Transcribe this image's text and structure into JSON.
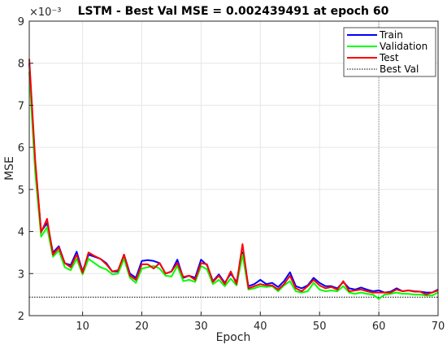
{
  "chart_data": {
    "type": "line",
    "title": "LSTM - Best Val MSE = 0.002439491 at epoch 60",
    "xlabel": "Epoch",
    "ylabel": "MSE",
    "y_multiplier_label": "×10⁻³",
    "xlim": [
      1,
      70
    ],
    "ylim": [
      2,
      9
    ],
    "xticks": [
      10,
      20,
      30,
      40,
      50,
      60,
      70
    ],
    "yticks": [
      2,
      3,
      4,
      5,
      6,
      7,
      8,
      9
    ],
    "grid": true,
    "legend_position": "top-right",
    "x": [
      1,
      2,
      3,
      4,
      5,
      6,
      7,
      8,
      9,
      10,
      11,
      12,
      13,
      14,
      15,
      16,
      17,
      18,
      19,
      20,
      21,
      22,
      23,
      24,
      25,
      26,
      27,
      28,
      29,
      30,
      31,
      32,
      33,
      34,
      35,
      36,
      37,
      38,
      39,
      40,
      41,
      42,
      43,
      44,
      45,
      46,
      47,
      48,
      49,
      50,
      51,
      52,
      53,
      54,
      55,
      56,
      57,
      58,
      59,
      60,
      61,
      62,
      63,
      64,
      65,
      66,
      67,
      68,
      69,
      70
    ],
    "series": [
      {
        "name": "Train",
        "color": "#0000ff",
        "values": [
          8.0,
          5.6,
          4.0,
          4.2,
          3.5,
          3.65,
          3.25,
          3.2,
          3.52,
          3.05,
          3.45,
          3.4,
          3.35,
          3.25,
          3.05,
          3.05,
          3.45,
          3.0,
          2.9,
          3.3,
          3.32,
          3.3,
          3.25,
          3.0,
          3.05,
          3.33,
          2.9,
          2.95,
          2.9,
          3.33,
          3.2,
          2.82,
          2.98,
          2.78,
          3.0,
          2.8,
          3.5,
          2.7,
          2.75,
          2.85,
          2.75,
          2.78,
          2.68,
          2.82,
          3.03,
          2.7,
          2.65,
          2.72,
          2.9,
          2.78,
          2.7,
          2.7,
          2.65,
          2.8,
          2.65,
          2.62,
          2.67,
          2.62,
          2.58,
          2.6,
          2.55,
          2.57,
          2.65,
          2.58,
          2.6,
          2.58,
          2.57,
          2.55,
          2.55,
          2.62
        ]
      },
      {
        "name": "Validation",
        "color": "#00ff00",
        "values": [
          7.8,
          5.4,
          3.88,
          4.1,
          3.4,
          3.55,
          3.15,
          3.08,
          3.35,
          2.98,
          3.35,
          3.25,
          3.15,
          3.1,
          2.98,
          3.0,
          3.35,
          2.9,
          2.78,
          3.12,
          3.15,
          3.18,
          3.12,
          2.95,
          2.93,
          3.18,
          2.82,
          2.85,
          2.8,
          3.18,
          3.1,
          2.75,
          2.85,
          2.7,
          2.88,
          2.72,
          3.45,
          2.62,
          2.65,
          2.7,
          2.68,
          2.7,
          2.58,
          2.72,
          2.82,
          2.58,
          2.55,
          2.58,
          2.78,
          2.62,
          2.58,
          2.6,
          2.58,
          2.7,
          2.55,
          2.52,
          2.55,
          2.52,
          2.5,
          2.4,
          2.5,
          2.52,
          2.55,
          2.52,
          2.52,
          2.5,
          2.5,
          2.48,
          2.48,
          2.55
        ]
      },
      {
        "name": "Test",
        "color": "#ff0000",
        "values": [
          8.1,
          5.7,
          3.98,
          4.3,
          3.45,
          3.62,
          3.25,
          3.15,
          3.45,
          3.02,
          3.5,
          3.42,
          3.35,
          3.22,
          3.05,
          3.08,
          3.45,
          2.95,
          2.85,
          3.22,
          3.22,
          3.12,
          3.25,
          3.0,
          3.05,
          3.25,
          2.92,
          2.95,
          2.85,
          3.25,
          3.22,
          2.8,
          2.95,
          2.75,
          3.05,
          2.75,
          3.7,
          2.65,
          2.7,
          2.75,
          2.72,
          2.72,
          2.62,
          2.75,
          2.95,
          2.65,
          2.58,
          2.7,
          2.85,
          2.72,
          2.65,
          2.68,
          2.62,
          2.82,
          2.58,
          2.6,
          2.62,
          2.58,
          2.55,
          2.55,
          2.55,
          2.55,
          2.62,
          2.58,
          2.6,
          2.57,
          2.57,
          2.5,
          2.55,
          2.6
        ]
      },
      {
        "name": "Best Val",
        "color": "#000000",
        "style": "dotted",
        "constant": 2.439491
      }
    ],
    "best_epoch": 60
  }
}
